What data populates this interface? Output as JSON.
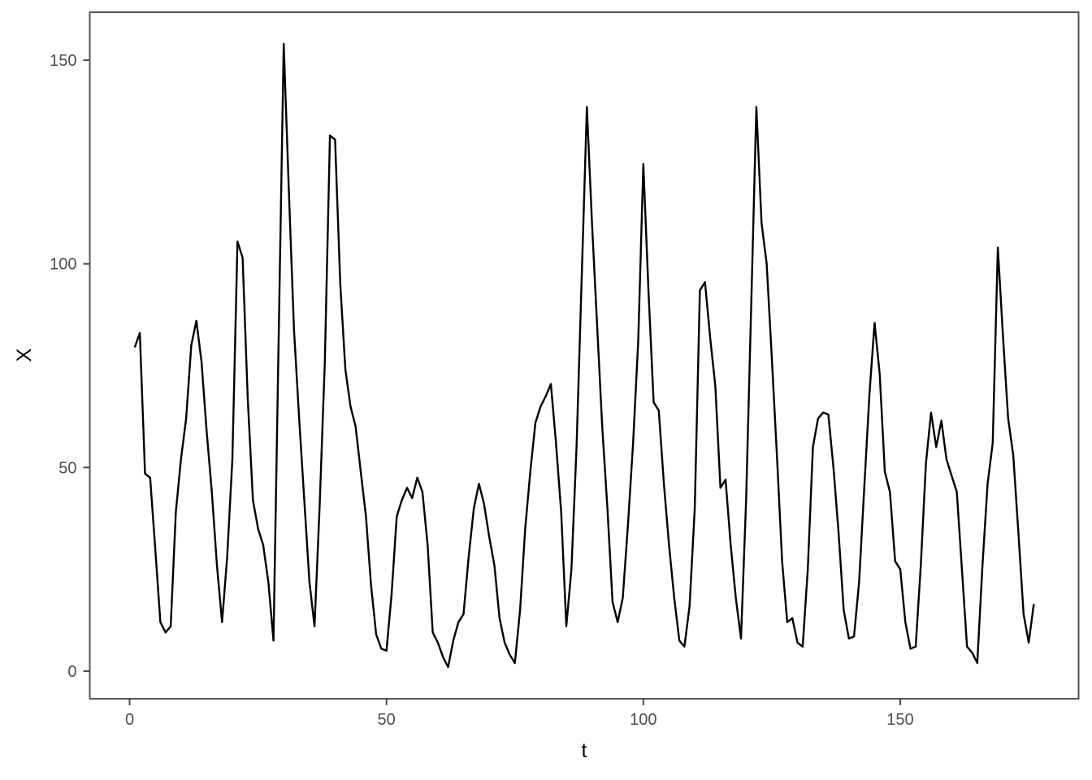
{
  "figure": {
    "background_color": "#ffffff",
    "panel_border_color": "#555555",
    "tick_color": "#4d4d4d",
    "tick_label_color": "#4d4d4d",
    "axis_title_color": "#000000",
    "line_color": "#000000"
  },
  "chart_data": {
    "type": "line",
    "title": "",
    "xlabel": "t",
    "ylabel": "X",
    "xlim": [
      -7.75,
      184.75
    ],
    "ylim": [
      -7,
      162
    ],
    "x_ticks": [
      0,
      50,
      100,
      150
    ],
    "y_ticks": [
      0,
      50,
      100,
      150
    ],
    "grid": false,
    "legend": false,
    "series_name": "X",
    "x": [
      1,
      2,
      3,
      4,
      5,
      6,
      7,
      8,
      9,
      10,
      11,
      12,
      13,
      14,
      15,
      16,
      17,
      18,
      19,
      20,
      21,
      22,
      23,
      24,
      25,
      26,
      27,
      28,
      29,
      30,
      31,
      32,
      33,
      34,
      35,
      36,
      37,
      38,
      39,
      40,
      41,
      42,
      43,
      44,
      45,
      46,
      47,
      48,
      49,
      50,
      51,
      52,
      53,
      54,
      55,
      56,
      57,
      58,
      59,
      60,
      61,
      62,
      63,
      64,
      65,
      66,
      67,
      68,
      69,
      70,
      71,
      72,
      73,
      74,
      75,
      76,
      77,
      78,
      79,
      80,
      81,
      82,
      83,
      84,
      85,
      86,
      87,
      88,
      89,
      90,
      91,
      92,
      93,
      94,
      95,
      96,
      97,
      98,
      99,
      100,
      101,
      102,
      103,
      104,
      105,
      106,
      107,
      108,
      109,
      110,
      111,
      112,
      113,
      114,
      115,
      116,
      117,
      118,
      119,
      120,
      121,
      122,
      123,
      124,
      125,
      126,
      127,
      128,
      129,
      130,
      131,
      132,
      133,
      134,
      135,
      136,
      137,
      138,
      139,
      140,
      141,
      142,
      143,
      144,
      145,
      146,
      147,
      148,
      149,
      150,
      151,
      152,
      153,
      154,
      155,
      156,
      157,
      158,
      159,
      160,
      161,
      162,
      163,
      164,
      165,
      166,
      167,
      168,
      169,
      170,
      171,
      172,
      173,
      174,
      175,
      176
    ],
    "y": [
      79.5,
      83,
      48.5,
      47.5,
      30,
      12,
      9.5,
      11,
      39,
      52,
      62,
      80,
      86,
      76,
      59,
      44,
      26,
      12,
      28,
      52,
      105.5,
      101.5,
      67,
      42,
      35,
      31,
      22,
      7.5,
      81,
      154,
      118,
      84,
      62,
      42,
      22,
      11,
      41,
      76,
      131.5,
      130.5,
      95,
      74,
      65,
      60,
      49,
      38,
      21,
      9,
      5.5,
      5,
      19,
      38,
      42,
      45,
      42.5,
      47.5,
      44,
      31,
      9.5,
      7,
      3.5,
      1,
      7.5,
      12,
      14,
      28,
      40,
      46,
      41,
      33,
      26,
      13,
      7,
      4,
      2,
      15,
      35,
      49,
      61,
      65,
      67.5,
      70.5,
      56,
      39,
      11,
      25,
      55,
      97,
      138.5,
      110,
      85,
      60,
      40,
      17,
      12,
      18,
      36,
      56,
      81,
      124.5,
      93,
      66,
      64,
      46,
      31,
      18,
      7.5,
      6,
      16,
      40,
      93.5,
      95.5,
      82,
      70,
      45,
      47,
      31,
      18,
      8,
      42,
      90,
      138.5,
      110,
      100,
      77,
      53,
      27,
      12,
      13,
      7,
      6,
      25,
      55,
      62,
      63.5,
      63,
      50,
      34,
      15,
      8,
      8.5,
      22,
      45,
      68,
      85.5,
      73,
      49,
      44,
      27,
      25,
      12,
      5.5,
      6,
      26,
      51,
      63.5,
      55,
      61.5,
      52,
      48,
      44,
      25,
      6,
      4.5,
      2,
      26,
      46,
      56,
      104,
      82,
      62,
      53,
      34,
      14,
      7,
      16.5
    ]
  }
}
